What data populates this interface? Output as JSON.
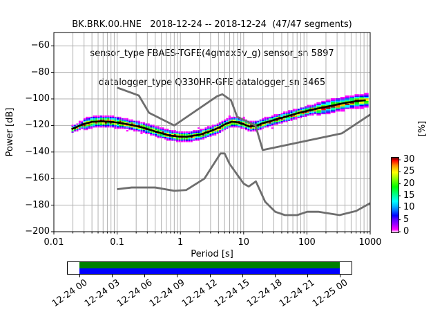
{
  "title": {
    "line1": "BK.BRK.00.HNE   2018-12-24 -- 2018-12-24  (47/47 segments)",
    "line2": "sensor_type FBAES-TGFE(4gmax5v_g) sensor_sn 5897",
    "line3": "datalogger_type Q330HR-GFE datalogger_sn 3465"
  },
  "axes": {
    "xlabel": "Period [s]",
    "ylabel": "Power [dB]",
    "x_tick_labels": [
      "0.01",
      "0.1",
      "1",
      "10",
      "100",
      "1000"
    ],
    "y_tick_labels": [
      "−60",
      "−80",
      "−100",
      "−120",
      "−140",
      "−160",
      "−180",
      "−200"
    ]
  },
  "colorbar": {
    "label": "[%]",
    "tick_labels": [
      "30",
      "25",
      "20",
      "15",
      "10",
      "5",
      "0"
    ],
    "stops": [
      [
        0,
        "#ffffff"
      ],
      [
        1.2,
        "#ff00ff"
      ],
      [
        3.5,
        "#9900ff"
      ],
      [
        5.5,
        "#5500ff"
      ],
      [
        7,
        "#0000ff"
      ],
      [
        9,
        "#0066ff"
      ],
      [
        11,
        "#00bbff"
      ],
      [
        13,
        "#00ffff"
      ],
      [
        15,
        "#00ffaa"
      ],
      [
        17,
        "#00ff55"
      ],
      [
        19,
        "#00ff00"
      ],
      [
        21,
        "#55ff00"
      ],
      [
        23,
        "#aaff00"
      ],
      [
        25,
        "#ffff00"
      ],
      [
        26.5,
        "#ffcc00"
      ],
      [
        28,
        "#ff8800"
      ],
      [
        29,
        "#ff4400"
      ],
      [
        30,
        "#ff0000"
      ],
      [
        30.6,
        "#990000"
      ]
    ]
  },
  "timeline": {
    "tick_labels": [
      "12-24 00",
      "12-24 03",
      "12-24 06",
      "12-24 09",
      "12-24 12",
      "12-24 15",
      "12-24 18",
      "12-24 21",
      "12-25 00"
    ],
    "coverage_color": "#008000",
    "used_color": "#0000ff"
  },
  "style": {
    "grid_color": "#b0b0b0",
    "noise_model_color": "#6e6e6e",
    "mode_line_color": "#000000"
  },
  "chart_data": {
    "type": "heatmap",
    "title": "BK.BRK.00.HNE 2018-12-24 -- 2018-12-24 (47/47 segments)",
    "xlabel": "Period [s]",
    "ylabel": "Power [dB]",
    "xscale": "log",
    "xlim": [
      0.01,
      1000
    ],
    "ylim": [
      -200,
      -50
    ],
    "x_ticks": [
      0.01,
      0.1,
      1,
      10,
      100,
      1000
    ],
    "y_ticks": [
      -60,
      -80,
      -100,
      -120,
      -140,
      -160,
      -180,
      -200
    ],
    "grid": true,
    "colorbar": {
      "label": "[%]",
      "range": [
        0,
        30
      ],
      "ticks": [
        0,
        5,
        10,
        15,
        20,
        25,
        30
      ]
    },
    "mode_line": {
      "name": "PSD histogram mode [period s, dB]",
      "points": [
        [
          0.019,
          -122.8
        ],
        [
          0.028,
          -119.3
        ],
        [
          0.04,
          -117.3
        ],
        [
          0.055,
          -116.9
        ],
        [
          0.078,
          -117.2
        ],
        [
          0.1,
          -117.8
        ],
        [
          0.15,
          -119.2
        ],
        [
          0.25,
          -121.5
        ],
        [
          0.4,
          -124.5
        ],
        [
          0.63,
          -127.2
        ],
        [
          0.9,
          -128.3
        ],
        [
          1.26,
          -128.5
        ],
        [
          2.0,
          -127.0
        ],
        [
          3.0,
          -124.3
        ],
        [
          4.2,
          -121.3
        ],
        [
          5.2,
          -118.8
        ],
        [
          6.5,
          -117.2
        ],
        [
          7.9,
          -117.5
        ],
        [
          10,
          -119.0
        ],
        [
          12.3,
          -120.8
        ],
        [
          15.8,
          -120.2
        ],
        [
          20,
          -118.3
        ],
        [
          27,
          -116.6
        ],
        [
          33,
          -115.3
        ],
        [
          45,
          -113.6
        ],
        [
          60,
          -111.8
        ],
        [
          79,
          -110.2
        ],
        [
          112,
          -108.5
        ],
        [
          151,
          -107.2
        ],
        [
          209,
          -105.8
        ],
        [
          302,
          -104.2
        ],
        [
          417,
          -102.9
        ],
        [
          600,
          -101.7
        ],
        [
          851,
          -101.0
        ]
      ]
    },
    "noise_models": {
      "nhnm": {
        "name": "Peterson New High Noise Model [period s, dB]",
        "points": [
          [
            0.1,
            -91.5
          ],
          [
            0.22,
            -97.4
          ],
          [
            0.32,
            -110.5
          ],
          [
            0.8,
            -120.0
          ],
          [
            3.8,
            -98.0
          ],
          [
            4.6,
            -96.5
          ],
          [
            6.3,
            -101.0
          ],
          [
            7.9,
            -113.5
          ],
          [
            15.4,
            -120.0
          ],
          [
            20.0,
            -138.5
          ],
          [
            354.8,
            -126.0
          ],
          [
            1000,
            -111.8
          ]
        ]
      },
      "nlnm": {
        "name": "Peterson New Low Noise Model [period s, dB]",
        "points": [
          [
            0.1,
            -168.0
          ],
          [
            0.17,
            -166.7
          ],
          [
            0.4,
            -166.7
          ],
          [
            0.8,
            -169.2
          ],
          [
            1.24,
            -168.6
          ],
          [
            2.4,
            -160.0
          ],
          [
            4.3,
            -141.1
          ],
          [
            5.0,
            -141.1
          ],
          [
            6.0,
            -149.0
          ],
          [
            10.0,
            -163.8
          ],
          [
            12.0,
            -166.0
          ],
          [
            15.6,
            -162.1
          ],
          [
            21.9,
            -177.5
          ],
          [
            31.6,
            -185.0
          ],
          [
            45.0,
            -187.5
          ],
          [
            70.0,
            -187.5
          ],
          [
            101.0,
            -185.0
          ],
          [
            154.0,
            -185.0
          ],
          [
            328.0,
            -187.5
          ],
          [
            600.0,
            -184.4
          ],
          [
            1000,
            -178.5
          ]
        ]
      }
    },
    "histogram_band": {
      "description": "probability band around mode",
      "typical_halfwidth_db": 3,
      "max_percent": 30,
      "period_range_s": [
        0.019,
        870
      ]
    }
  }
}
